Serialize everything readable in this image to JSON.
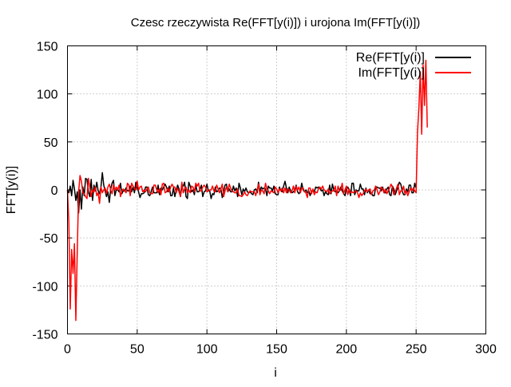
{
  "chart_data": {
    "type": "line",
    "title": "Czesc rzeczywista Re(FFT[y(i)]) i urojona Im(FFT[y(i)])",
    "xlabel": "i",
    "ylabel": "FFT[y(i)]",
    "xlim": [
      0,
      300
    ],
    "ylim": [
      -150,
      150
    ],
    "x_ticks": [
      "0",
      "50",
      "100",
      "150",
      "200",
      "250",
      "300"
    ],
    "y_ticks": [
      "150",
      "100",
      "50",
      "0",
      "-50",
      "-100",
      "-150"
    ],
    "grid": true,
    "legend_position": "top-right",
    "x_start": 0,
    "x_step": 1,
    "series": [
      {
        "name": "Re(FFT[y(i)]",
        "color": "#000000",
        "values": [
          0,
          -3,
          4,
          -6,
          10,
          1,
          -11,
          -2,
          -24,
          0,
          -20,
          3,
          -6,
          12,
          11,
          -2,
          -7,
          11,
          -11,
          5,
          -1,
          8,
          -1,
          -4,
          3,
          18,
          5,
          -1,
          -7,
          -2,
          -13,
          1,
          7,
          10,
          -6,
          0,
          0,
          -2,
          7,
          -4,
          -1,
          -1,
          2,
          -1,
          -1,
          4,
          -2,
          3,
          -3,
          8,
          2,
          -2,
          -8,
          -4,
          -4,
          -3,
          3,
          3,
          -5,
          -6,
          -2,
          3,
          -3,
          -3,
          -3,
          5,
          -5,
          2,
          0,
          3,
          6,
          3,
          -2,
          4,
          -6,
          -6,
          2,
          -7,
          0,
          5,
          1,
          -7,
          3,
          4,
          8,
          -7,
          -9,
          8,
          4,
          -2,
          0,
          -5,
          5,
          -2,
          -2,
          0,
          5,
          -7,
          -2,
          -1,
          6,
          -1,
          -1,
          -9,
          -4,
          -5,
          3,
          -2,
          -1,
          2,
          1,
          -8,
          -1,
          5,
          6,
          -2,
          1,
          -2,
          -2,
          4,
          -1,
          2,
          -7,
          7,
          2,
          -5,
          1,
          -2,
          2,
          -2,
          -3,
          -2,
          -4,
          -5,
          0,
          1,
          -3,
          8,
          -2,
          3,
          1,
          2,
          1,
          -6,
          4,
          2,
          2,
          -1,
          4,
          -4,
          -5,
          -5,
          3,
          -1,
          -2,
          4,
          9,
          2,
          -3,
          3,
          -1,
          -3,
          -2,
          0,
          5,
          -2,
          -4,
          -1,
          7,
          0,
          -2,
          0,
          -3,
          -1,
          -6,
          -1,
          -1,
          -2,
          3,
          2,
          3,
          2,
          -1,
          0,
          -6,
          -2,
          -4,
          -5,
          5,
          -4,
          6,
          0,
          -2,
          -1,
          -3,
          -1,
          3,
          -1,
          -4,
          -6,
          1,
          3,
          0,
          -6,
          7,
          7,
          -5,
          0,
          -1,
          -1,
          6,
          1,
          1,
          -5,
          2,
          -3,
          0,
          -4,
          -3,
          -6,
          -6,
          3,
          3,
          2,
          2,
          -1,
          3,
          -3,
          -3,
          1,
          3,
          -5,
          -6,
          4,
          1,
          -5,
          -1,
          3,
          8,
          6,
          -1,
          -5,
          -5,
          1,
          -2,
          5,
          5,
          -3,
          -3,
          7,
          2
        ]
      },
      {
        "name": "Im(FFT[y(i)]",
        "color": "#ff0000",
        "values": [
          0,
          -35,
          -124,
          -62,
          -87,
          -56,
          -136,
          -65,
          -2,
          15,
          9,
          -3,
          -4,
          -7,
          -9,
          12,
          3,
          -7,
          0,
          -2,
          3,
          -6,
          -3,
          -14,
          3,
          -3,
          0,
          2,
          -4,
          3,
          6,
          0,
          -4,
          5,
          0,
          3,
          0,
          5,
          -7,
          -1,
          1,
          -1,
          -3,
          7,
          5,
          -6,
          7,
          4,
          1,
          0,
          9,
          0,
          3,
          4,
          -2,
          0,
          -2,
          1,
          3,
          -3,
          -4,
          -4,
          5,
          5,
          0,
          -3,
          1,
          -5,
          6,
          7,
          -3,
          -2,
          2,
          -2,
          3,
          6,
          3,
          3,
          -3,
          2,
          -2,
          -7,
          8,
          -3,
          1,
          3,
          -3,
          0,
          -3,
          4,
          3,
          -2,
          7,
          4,
          7,
          -1,
          -1,
          3,
          5,
          3,
          -2,
          -1,
          0,
          0,
          4,
          -1,
          -2,
          5,
          1,
          -3,
          1,
          6,
          -7,
          -1,
          3,
          -2,
          6,
          2,
          -1,
          -2,
          -3,
          -3,
          1,
          -6,
          -6,
          -7,
          -5,
          -2,
          -5,
          -6,
          -3,
          -1,
          -2,
          -2,
          -2,
          -6,
          0,
          6,
          -5,
          0,
          -1,
          -4,
          7,
          1,
          -1,
          -4,
          -1,
          -2,
          -3,
          3,
          1,
          -3,
          1,
          -1,
          2,
          -3,
          2,
          -3,
          1,
          0,
          -3,
          -1,
          4,
          -3,
          4,
          0,
          3,
          -3,
          2,
          2,
          -2,
          -3,
          -8,
          2,
          2,
          -4,
          1,
          -5,
          -2,
          -3,
          1,
          3,
          1,
          4,
          0,
          -1,
          -2,
          1,
          -4,
          -2,
          -1,
          -1,
          4,
          -6,
          4,
          -1,
          0,
          7,
          -4,
          0,
          4,
          -5,
          1,
          -3,
          -2,
          -3,
          -2,
          -1,
          -3,
          -8,
          -3,
          -6,
          -4,
          -1,
          1,
          -2,
          0,
          1,
          -5,
          -1,
          0,
          4,
          0,
          -5,
          -2,
          3,
          1,
          -3,
          1,
          -4,
          -1,
          2,
          6,
          3,
          -5,
          -2,
          2,
          6,
          -5,
          -1,
          -1,
          4,
          -4,
          -1,
          -6,
          -2,
          2,
          -1,
          2,
          -1,
          -3,
          60,
          86,
          123,
          58,
          130,
          88,
          135,
          65
        ]
      }
    ]
  }
}
